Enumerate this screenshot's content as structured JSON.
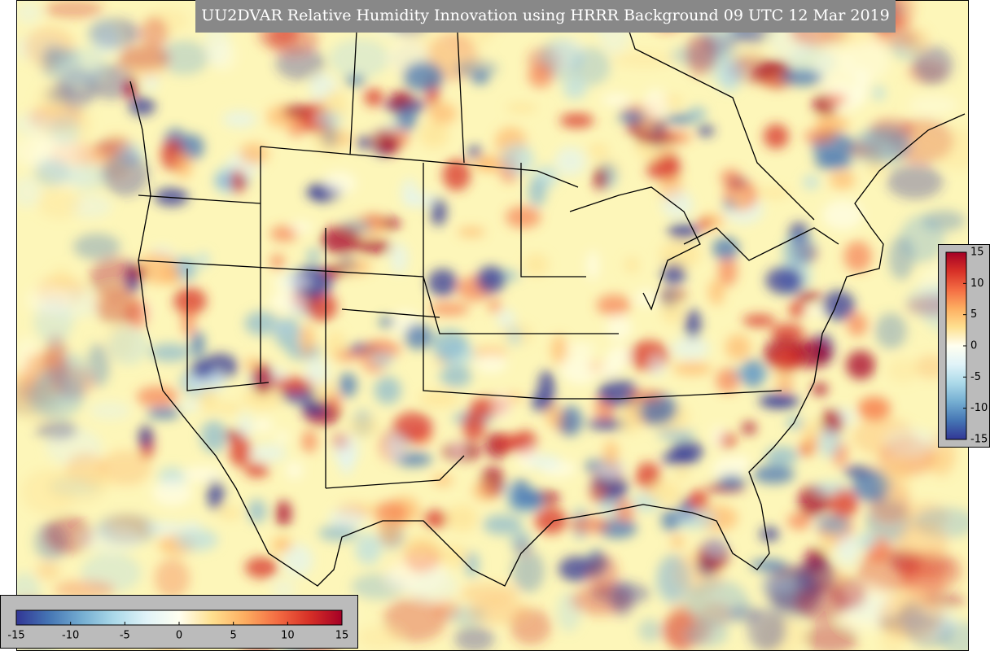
{
  "title": "UU2DVAR Relative Humidity Innovation using HRRR Background 09 UTC 12 Mar 2019",
  "colorbar_bottom": {
    "lim": [
      -15,
      15
    ],
    "ticks": [
      -15,
      -10,
      -5,
      0,
      5,
      10,
      15
    ]
  },
  "colorbar_right": {
    "lim": [
      -15,
      15
    ],
    "ticks": [
      -15,
      -10,
      -5,
      0,
      5,
      10,
      15
    ]
  }
}
